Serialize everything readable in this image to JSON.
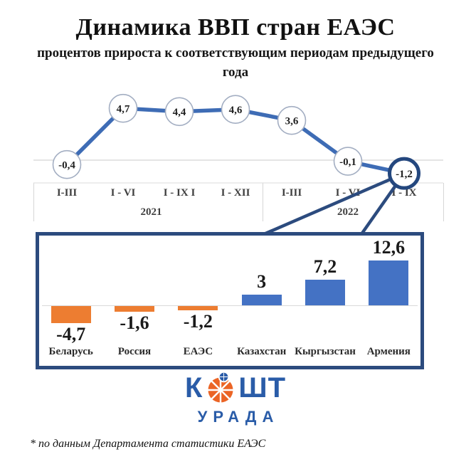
{
  "header": {
    "title": "Динамика ВВП стран ЕАЭС",
    "subtitle": "процентов прироста к соответствующим периодам предыдущего года"
  },
  "chart_data": [
    {
      "type": "line",
      "title": "Динамика ВВП стран ЕАЭС",
      "ylabel": "процентов прироста к соответствующим периодам предыдущего года",
      "x_ticks": [
        "I-III",
        "I - VI",
        "I - IX I",
        "I - XII",
        "I-III",
        "I - VI",
        "I - IX"
      ],
      "year_groups": [
        {
          "label": "2021",
          "tick_span": [
            0,
            3
          ]
        },
        {
          "label": "2022",
          "tick_span": [
            4,
            6
          ]
        }
      ],
      "values": [
        -0.4,
        4.7,
        4.4,
        4.6,
        3.6,
        -0.1,
        -1.2
      ],
      "point_labels": [
        "-0,4",
        "4,7",
        "4,4",
        "4,6",
        "3,6",
        "-0,1",
        "-1,2"
      ],
      "highlight_index": 6,
      "grid": true,
      "line_color": "#3E6CB5",
      "marker_fill": "#FFFFFF",
      "marker_stroke": "#A3AEC2",
      "highlight_stroke": "#24477E",
      "grid_color": "#DBDBDB"
    },
    {
      "type": "bar",
      "categories": [
        "Беларусь",
        "Россия",
        "ЕАЭС",
        "Казахстан",
        "Кыргызстан",
        "Армения"
      ],
      "values": [
        -4.7,
        -1.6,
        -1.2,
        3,
        7.2,
        12.6
      ],
      "value_labels": [
        "-4,7",
        "-1,6",
        "-1,2",
        "3",
        "7,2",
        "12,6"
      ],
      "bar_colors": [
        "#ED7D31",
        "#ED7D31",
        "#ED7D31",
        "#4472C4",
        "#4472C4",
        "#4472C4"
      ],
      "ylim": [
        -6,
        14
      ],
      "frame_color": "#2C4B7E",
      "zero_line_color": "#D9D9D9"
    }
  ],
  "callout": {
    "note": "circled last line-chart point expands into bar chart",
    "color": "#2C4B7E"
  },
  "logo": {
    "word_part1": "К",
    "word_part2": "ШТ",
    "o_icon": "orange-pie-with-blue-globe",
    "bottom_word": "УРАДА",
    "blue": "#2A5CA8",
    "orange": "#EB6425"
  },
  "footnote": "* по данным Департамента статистики ЕАЭС"
}
